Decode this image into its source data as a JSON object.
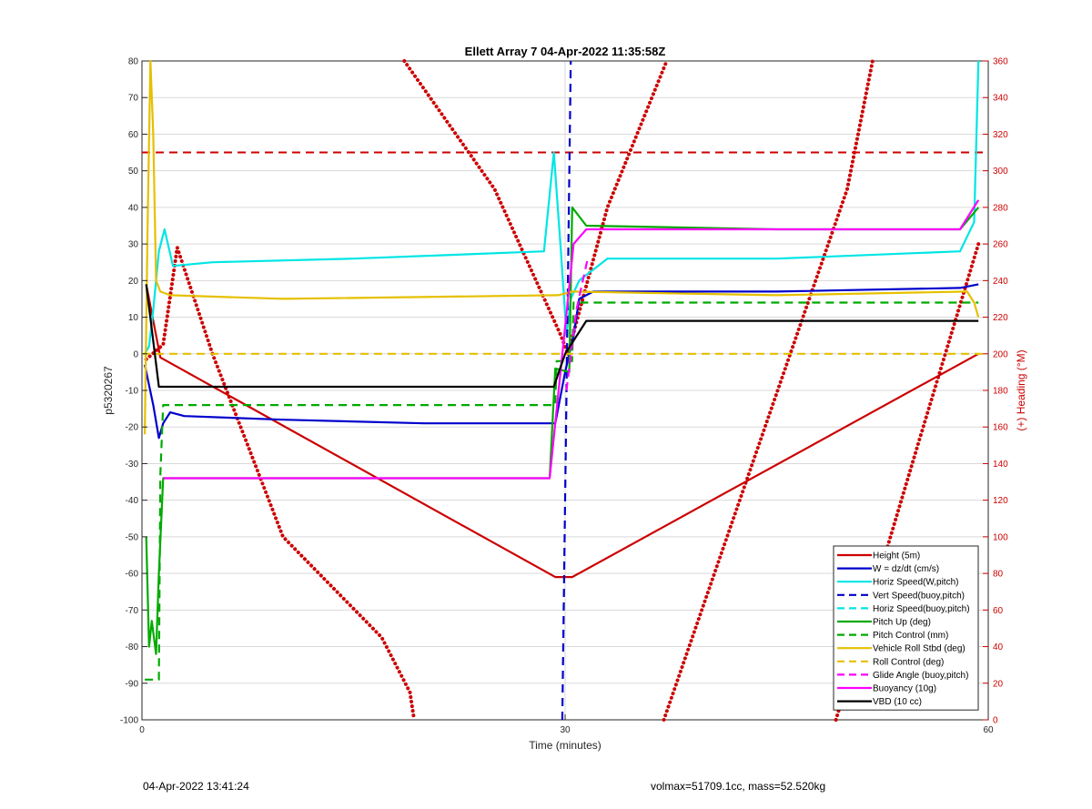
{
  "chart_data": {
    "type": "line",
    "title": "Ellett Array 7 04-Apr-2022 11:35:58Z",
    "xlabel": "Time (minutes)",
    "ylabel": "p5320267",
    "y2label": "(+) Heading (°M)",
    "xlim": [
      0,
      60
    ],
    "ylim": [
      -100,
      80
    ],
    "y2lim": [
      0,
      360
    ],
    "xticks": [
      0,
      30,
      60
    ],
    "yticks": [
      -100,
      -90,
      -80,
      -70,
      -60,
      -50,
      -40,
      -30,
      -20,
      -10,
      0,
      10,
      20,
      30,
      40,
      50,
      60,
      70,
      80
    ],
    "y2ticks": [
      0,
      20,
      40,
      60,
      80,
      100,
      120,
      140,
      160,
      180,
      200,
      220,
      240,
      260,
      280,
      300,
      320,
      340,
      360
    ],
    "grid": true,
    "legend_position": "bottom-right",
    "colors": {
      "red": "#cc0000",
      "blue": "#0000cc",
      "cyan": "#00e5e5",
      "green": "#00aa00",
      "yellow": "#e5c000",
      "magenta": "#ff00ff",
      "black": "#000000",
      "grid": "#d9d9d9"
    },
    "series": [
      {
        "name": "Height (5m)",
        "color": "#cc0000",
        "style": "solid",
        "x": [
          0.3,
          1.3,
          29.3,
          30.5,
          59.3
        ],
        "y": [
          19,
          -1,
          -61,
          -61,
          0
        ]
      },
      {
        "name": "W = dz/dt (cm/s)",
        "color": "#0000cc",
        "style": "solid",
        "x": [
          0.2,
          0.8,
          1.2,
          1.5,
          2,
          3,
          10,
          20,
          29.3,
          30,
          30.6,
          31,
          32,
          45,
          58,
          59.3
        ],
        "y": [
          -3,
          -14,
          -23,
          -19,
          -16,
          -17,
          -18,
          -19,
          -19,
          -5,
          5,
          15,
          17,
          17,
          18,
          19
        ]
      },
      {
        "name": "Horiz Speed(W,pitch)",
        "color": "#00e5e5",
        "style": "solid",
        "x": [
          0.2,
          0.5,
          0.8,
          1.2,
          1.6,
          2.2,
          5,
          15,
          28.5,
          29.2,
          29.7,
          30.1,
          30.4,
          31,
          33,
          45,
          58,
          59,
          59.3
        ],
        "y": [
          0,
          2,
          12,
          28,
          34,
          24,
          25,
          26,
          28,
          55,
          28,
          5,
          15,
          20,
          26,
          26,
          28,
          36,
          80
        ]
      },
      {
        "name": "Vert Speed(buoy,pitch)",
        "color": "#0000cc",
        "style": "dashed",
        "x": [
          29.8,
          30.4
        ],
        "y": [
          -100,
          80
        ]
      },
      {
        "name": "Horiz Speed(buoy,pitch)",
        "color": "#00e5e5",
        "style": "dashed",
        "x": [],
        "y": []
      },
      {
        "name": "Pitch Up (deg)",
        "color": "#00aa00",
        "style": "solid",
        "x": [
          0.3,
          0.5,
          0.7,
          1,
          1.2,
          1.5,
          5,
          20,
          28.9,
          29.3,
          30.3,
          30.5,
          31.5,
          45,
          58,
          59.3
        ],
        "y": [
          -50,
          -80,
          -73,
          -82,
          -60,
          -34,
          -34,
          -34,
          -34,
          -4,
          -5,
          40,
          35,
          34,
          34,
          40
        ]
      },
      {
        "name": "Pitch Control (mm)",
        "color": "#00aa00",
        "style": "dashed",
        "x": [
          0.2,
          1.2,
          1.3,
          1.5,
          29.3,
          29.4,
          30.5,
          30.6,
          59.3
        ],
        "y": [
          -89,
          -89,
          -33,
          -14,
          -14,
          -2,
          -2,
          14,
          14
        ]
      },
      {
        "name": "Vehicle Roll Stbd (deg)",
        "color": "#e5c000",
        "style": "solid",
        "x": [
          0.2,
          0.4,
          0.6,
          0.8,
          1,
          1.3,
          2,
          10,
          29.5,
          30.5,
          45,
          58.5,
          59,
          59.3
        ],
        "y": [
          -22,
          35,
          80,
          60,
          20,
          17,
          16,
          15,
          16,
          17,
          16,
          17,
          14,
          10
        ]
      },
      {
        "name": "Roll Control (deg)",
        "color": "#e5c000",
        "style": "dashed",
        "x": [
          0,
          60
        ],
        "y": [
          0,
          0
        ]
      },
      {
        "name": "Glide Angle (buoy,pitch)",
        "color": "#ff00ff",
        "style": "dashed",
        "x": [
          30.1,
          30.8,
          31.6
        ],
        "y": [
          -10,
          12,
          26
        ]
      },
      {
        "name": "Buoyancy (10g)",
        "color": "#ff00ff",
        "style": "solid",
        "x": [
          1.5,
          5,
          20,
          28.9,
          30.6,
          31.5,
          45,
          58,
          59.3
        ],
        "y": [
          -34,
          -34,
          -34,
          -34,
          30,
          34,
          34,
          34,
          42
        ]
      },
      {
        "name": "VBD (10 cc)",
        "color": "#000000",
        "style": "solid",
        "x": [
          0.3,
          1.2,
          5,
          20,
          29.2,
          30,
          31.5,
          59.3
        ],
        "y": [
          19,
          -9,
          -9,
          -9,
          -9,
          0,
          9,
          9
        ]
      }
    ],
    "heading_series": {
      "axis": "right",
      "color": "#cc0000",
      "style": "dotted",
      "segments": [
        {
          "x": [
            0.3,
            1.5,
            2.5,
            5,
            10,
            17,
            19,
            19.3
          ],
          "y": [
            197,
            205,
            258,
            200,
            100,
            45,
            15,
            0
          ]
        },
        {
          "x": [
            18.6,
            25,
            29.7,
            30.2
          ],
          "y": [
            360,
            290,
            210,
            200
          ]
        },
        {
          "x": [
            30.2,
            33,
            37.2
          ],
          "y": [
            200,
            280,
            360
          ]
        },
        {
          "x": [
            37,
            50,
            51.8
          ],
          "y": [
            0,
            290,
            360
          ]
        },
        {
          "x": [
            49.2,
            55,
            59.3
          ],
          "y": [
            0,
            150,
            260
          ]
        }
      ]
    },
    "dashed_reference": {
      "axis": "right",
      "color": "#cc0000",
      "y": 310
    }
  },
  "footer": {
    "date": "04-Apr-2022 13:41:24",
    "stats": "volmax=51709.1cc, mass=52.520kg"
  }
}
